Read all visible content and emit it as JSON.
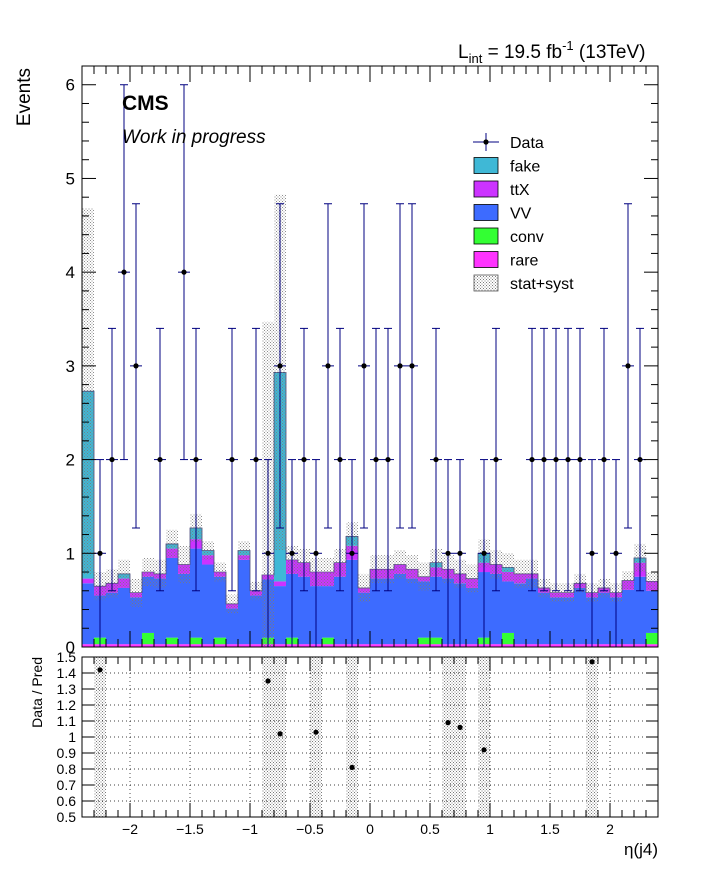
{
  "header": {
    "lumi_prefix": "L",
    "lumi_sub": "int",
    "lumi_mid": " = 19.5 fb",
    "lumi_sup": "-1",
    "lumi_suffix": " (13TeV)"
  },
  "cms_label": "CMS",
  "wip_label": "Work in progress",
  "colors": {
    "fake": "#3fb8d6",
    "ttX": "#cc33ff",
    "VV": "#3d6bff",
    "conv": "#33ff33",
    "rare": "#ff33ff",
    "data": "#000080",
    "band": "#9a9a9a"
  },
  "chart_data": [
    {
      "type": "bar",
      "stacked": true,
      "ylabel": "Events",
      "ylim": [
        0,
        6.2
      ],
      "xlim": [
        -2.4,
        2.4
      ],
      "yticks": [
        0,
        1,
        2,
        3,
        4,
        5,
        6
      ],
      "legend": {
        "placement": "top-right",
        "entries": [
          {
            "key": "data",
            "label": "Data",
            "style": "marker"
          },
          {
            "key": "fake",
            "label": "fake",
            "style": "fill"
          },
          {
            "key": "ttX",
            "label": "ttX",
            "style": "fill"
          },
          {
            "key": "VV",
            "label": "VV",
            "style": "fill"
          },
          {
            "key": "conv",
            "label": "conv",
            "style": "fill"
          },
          {
            "key": "rare",
            "label": "rare",
            "style": "fill"
          },
          {
            "key": "band",
            "label": "stat+syst",
            "style": "hatch"
          }
        ]
      },
      "bin_edges": [
        -2.4,
        -2.3,
        -2.2,
        -2.1,
        -2.0,
        -1.9,
        -1.8,
        -1.7,
        -1.6,
        -1.5,
        -1.4,
        -1.3,
        -1.2,
        -1.1,
        -1.0,
        -0.9,
        -0.8,
        -0.7,
        -0.6,
        -0.5,
        -0.4,
        -0.3,
        -0.2,
        -0.1,
        0.0,
        0.1,
        0.2,
        0.3,
        0.4,
        0.5,
        0.6,
        0.7,
        0.8,
        0.9,
        1.0,
        1.1,
        1.2,
        1.3,
        1.4,
        1.5,
        1.6,
        1.7,
        1.8,
        1.9,
        2.0,
        2.1,
        2.2,
        2.3,
        2.4
      ],
      "stack_order": [
        "rare",
        "conv",
        "VV",
        "ttX",
        "fake"
      ],
      "series": [
        {
          "name": "rare",
          "values": [
            0.03,
            0.03,
            0.03,
            0.03,
            0.03,
            0.03,
            0.03,
            0.03,
            0.03,
            0.03,
            0.03,
            0.03,
            0.03,
            0.03,
            0.03,
            0.03,
            0.03,
            0.03,
            0.03,
            0.03,
            0.03,
            0.03,
            0.03,
            0.03,
            0.03,
            0.03,
            0.03,
            0.03,
            0.03,
            0.03,
            0.03,
            0.03,
            0.03,
            0.03,
            0.03,
            0.03,
            0.03,
            0.03,
            0.03,
            0.03,
            0.03,
            0.03,
            0.03,
            0.03,
            0.03,
            0.03,
            0.03,
            0.03
          ]
        },
        {
          "name": "conv",
          "values": [
            0.0,
            0.07,
            0.0,
            0.0,
            0.0,
            0.12,
            0.0,
            0.07,
            0.0,
            0.07,
            0.0,
            0.07,
            0.0,
            0.0,
            0.0,
            0.07,
            0.0,
            0.07,
            0.0,
            0.0,
            0.07,
            0.0,
            0.0,
            0.0,
            0.0,
            0.0,
            0.0,
            0.0,
            0.07,
            0.07,
            0.0,
            0.0,
            0.0,
            0.07,
            0.0,
            0.12,
            0.0,
            0.0,
            0.0,
            0.0,
            0.0,
            0.0,
            0.0,
            0.0,
            0.0,
            0.0,
            0.0,
            0.12
          ]
        },
        {
          "name": "VV",
          "values": [
            0.65,
            0.45,
            0.55,
            0.6,
            0.5,
            0.6,
            0.7,
            0.85,
            0.75,
            0.95,
            0.85,
            0.65,
            0.38,
            0.9,
            0.52,
            0.62,
            0.62,
            0.68,
            0.72,
            0.62,
            0.55,
            0.72,
            0.9,
            0.55,
            0.7,
            0.7,
            0.75,
            0.7,
            0.6,
            0.65,
            0.7,
            0.65,
            0.6,
            0.7,
            0.75,
            0.55,
            0.65,
            0.7,
            0.55,
            0.5,
            0.5,
            0.6,
            0.5,
            0.55,
            0.5,
            0.58,
            0.72,
            0.45
          ]
        },
        {
          "name": "ttX",
          "values": [
            0.05,
            0.1,
            0.1,
            0.1,
            0.05,
            0.05,
            0.05,
            0.1,
            0.1,
            0.1,
            0.1,
            0.05,
            0.05,
            0.05,
            0.05,
            0.05,
            0.05,
            0.15,
            0.15,
            0.15,
            0.15,
            0.15,
            0.15,
            0.05,
            0.1,
            0.1,
            0.1,
            0.1,
            0.05,
            0.1,
            0.1,
            0.1,
            0.1,
            0.1,
            0.1,
            0.1,
            0.1,
            0.05,
            0.05,
            0.05,
            0.05,
            0.05,
            0.05,
            0.05,
            0.05,
            0.1,
            0.15,
            0.1
          ]
        },
        {
          "name": "fake",
          "values": [
            2.0,
            0.0,
            0.0,
            0.05,
            0.0,
            0.0,
            0.0,
            0.05,
            0.0,
            0.12,
            0.05,
            0.0,
            0.0,
            0.05,
            0.0,
            0.0,
            2.23,
            0.0,
            0.0,
            0.0,
            0.0,
            0.0,
            0.1,
            0.0,
            0.0,
            0.0,
            0.0,
            0.0,
            0.0,
            0.05,
            0.0,
            0.0,
            0.0,
            0.1,
            0.0,
            0.05,
            0.0,
            0.0,
            0.0,
            0.0,
            0.0,
            0.0,
            0.0,
            0.0,
            0.0,
            0.0,
            0.05,
            0.0
          ]
        }
      ],
      "band_half_width": [
        1.95,
        0.15,
        0.15,
        0.15,
        0.15,
        0.15,
        0.15,
        0.15,
        0.2,
        0.15,
        0.1,
        0.1,
        0.1,
        0.1,
        0.1,
        2.7,
        1.9,
        0.15,
        0.15,
        0.15,
        0.15,
        0.15,
        0.15,
        0.15,
        0.15,
        0.15,
        0.15,
        0.15,
        0.15,
        0.15,
        0.15,
        0.15,
        0.15,
        0.15,
        0.15,
        0.15,
        0.15,
        0.15,
        0.1,
        0.1,
        0.1,
        0.1,
        0.1,
        0.1,
        0.1,
        0.1,
        0.15,
        0.1
      ],
      "data_points": [
        {
          "x": -2.25,
          "y": 1,
          "err_lo": 1,
          "err_hi": 1.0
        },
        {
          "x": -2.15,
          "y": 2,
          "err_lo": 1.4,
          "err_hi": 1.4
        },
        {
          "x": -2.05,
          "y": 4,
          "err_lo": 2.0,
          "err_hi": 2.0
        },
        {
          "x": -1.95,
          "y": 3,
          "err_lo": 1.73,
          "err_hi": 1.73
        },
        {
          "x": -1.75,
          "y": 2,
          "err_lo": 1.4,
          "err_hi": 1.4
        },
        {
          "x": -1.55,
          "y": 4,
          "err_lo": 2.0,
          "err_hi": 2.0
        },
        {
          "x": -1.45,
          "y": 2,
          "err_lo": 1.4,
          "err_hi": 1.4
        },
        {
          "x": -1.15,
          "y": 2,
          "err_lo": 1.4,
          "err_hi": 1.4
        },
        {
          "x": -0.95,
          "y": 2,
          "err_lo": 1.4,
          "err_hi": 1.4
        },
        {
          "x": -0.85,
          "y": 1,
          "err_lo": 1,
          "err_hi": 1.0
        },
        {
          "x": -0.75,
          "y": 3,
          "err_lo": 1.73,
          "err_hi": 1.73
        },
        {
          "x": -0.65,
          "y": 1,
          "err_lo": 1,
          "err_hi": 1.0
        },
        {
          "x": -0.55,
          "y": 2,
          "err_lo": 1.4,
          "err_hi": 1.4
        },
        {
          "x": -0.45,
          "y": 1,
          "err_lo": 1,
          "err_hi": 1.0
        },
        {
          "x": -0.35,
          "y": 3,
          "err_lo": 1.73,
          "err_hi": 1.73
        },
        {
          "x": -0.25,
          "y": 2,
          "err_lo": 1.4,
          "err_hi": 1.4
        },
        {
          "x": -0.15,
          "y": 1,
          "err_lo": 1,
          "err_hi": 1.0
        },
        {
          "x": -0.05,
          "y": 3,
          "err_lo": 1.73,
          "err_hi": 1.73
        },
        {
          "x": 0.05,
          "y": 2,
          "err_lo": 1.4,
          "err_hi": 1.4
        },
        {
          "x": 0.15,
          "y": 2,
          "err_lo": 1.4,
          "err_hi": 1.4
        },
        {
          "x": 0.25,
          "y": 3,
          "err_lo": 1.73,
          "err_hi": 1.73
        },
        {
          "x": 0.35,
          "y": 3,
          "err_lo": 1.73,
          "err_hi": 1.73
        },
        {
          "x": 0.55,
          "y": 2,
          "err_lo": 1.4,
          "err_hi": 1.4
        },
        {
          "x": 0.65,
          "y": 1,
          "err_lo": 1,
          "err_hi": 1.0
        },
        {
          "x": 0.75,
          "y": 1,
          "err_lo": 1,
          "err_hi": 1.0
        },
        {
          "x": 0.95,
          "y": 1,
          "err_lo": 1,
          "err_hi": 1.0
        },
        {
          "x": 1.05,
          "y": 2,
          "err_lo": 1.4,
          "err_hi": 1.4
        },
        {
          "x": 1.35,
          "y": 2,
          "err_lo": 1.4,
          "err_hi": 1.4
        },
        {
          "x": 1.45,
          "y": 2,
          "err_lo": 1.4,
          "err_hi": 1.4
        },
        {
          "x": 1.55,
          "y": 2,
          "err_lo": 1.4,
          "err_hi": 1.4
        },
        {
          "x": 1.65,
          "y": 2,
          "err_lo": 1.4,
          "err_hi": 1.4
        },
        {
          "x": 1.75,
          "y": 2,
          "err_lo": 1.4,
          "err_hi": 1.4
        },
        {
          "x": 1.85,
          "y": 1,
          "err_lo": 1,
          "err_hi": 1.0
        },
        {
          "x": 1.95,
          "y": 2,
          "err_lo": 1.4,
          "err_hi": 1.4
        },
        {
          "x": 2.05,
          "y": 1,
          "err_lo": 1,
          "err_hi": 1.0
        },
        {
          "x": 2.15,
          "y": 3,
          "err_lo": 1.73,
          "err_hi": 1.73
        },
        {
          "x": 2.25,
          "y": 2,
          "err_lo": 1.4,
          "err_hi": 1.4
        }
      ]
    },
    {
      "type": "scatter",
      "ylabel": "Data / Pred",
      "xlabel": "η(j4)",
      "xlim": [
        -2.4,
        2.4
      ],
      "ylim": [
        0.5,
        1.5
      ],
      "grid": true,
      "xticks": [
        -2,
        -1.5,
        -1,
        -0.5,
        0,
        0.5,
        1,
        1.5,
        2
      ],
      "xtick_labels": [
        "−2",
        "−1.5",
        "−1",
        "−0.5",
        "0",
        "0.5",
        "1",
        "1.5",
        "2"
      ],
      "yticks": [
        0.5,
        0.6,
        0.7,
        0.8,
        0.9,
        1,
        1.1,
        1.2,
        1.3,
        1.4,
        1.5
      ],
      "ytick_labels": [
        "0.5",
        "0.6",
        "0.7",
        "0.8",
        "0.9",
        "1",
        "1.1",
        "1.2",
        "1.3",
        "1.4",
        "1.5"
      ],
      "bands": [
        {
          "x0": -2.3,
          "x1": -2.2
        },
        {
          "x0": -0.9,
          "x1": -0.7
        },
        {
          "x0": -0.5,
          "x1": -0.4
        },
        {
          "x0": -0.2,
          "x1": -0.1
        },
        {
          "x0": 0.6,
          "x1": 0.8
        },
        {
          "x0": 0.9,
          "x1": 1.0
        },
        {
          "x0": 1.8,
          "x1": 1.9
        }
      ],
      "points": [
        {
          "x": -2.25,
          "y": 1.42
        },
        {
          "x": -0.85,
          "y": 1.35
        },
        {
          "x": -0.75,
          "y": 1.02
        },
        {
          "x": -0.45,
          "y": 1.03
        },
        {
          "x": -0.15,
          "y": 0.81
        },
        {
          "x": 0.65,
          "y": 1.09
        },
        {
          "x": 0.75,
          "y": 1.06
        },
        {
          "x": 0.95,
          "y": 0.92
        },
        {
          "x": 1.85,
          "y": 1.47
        }
      ]
    }
  ]
}
